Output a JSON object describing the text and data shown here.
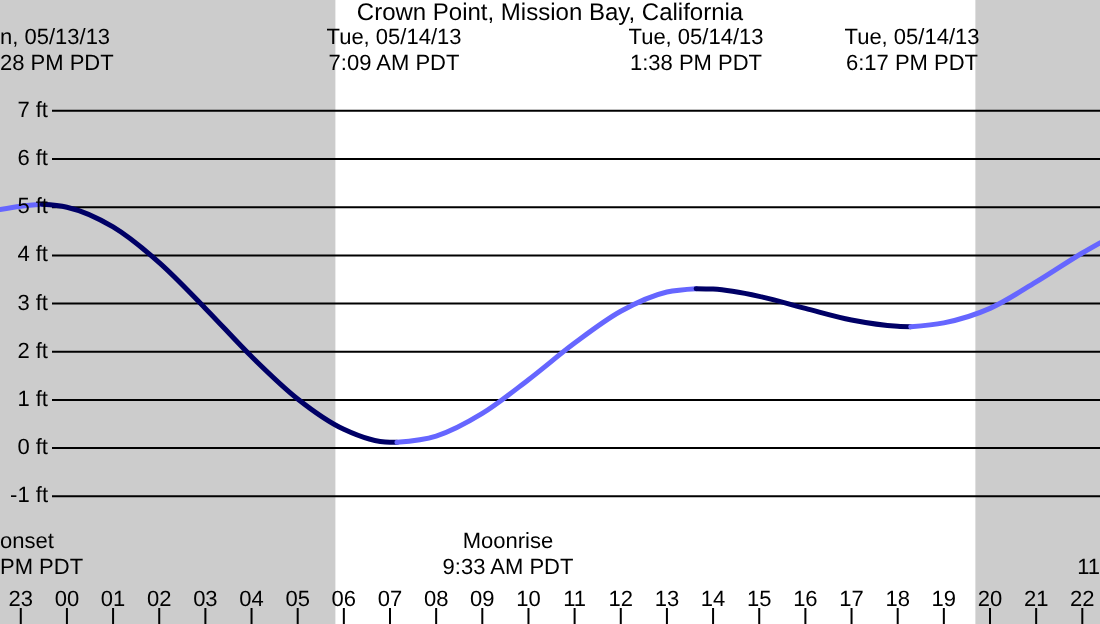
{
  "chart_data": {
    "type": "line",
    "title": "Crown Point, Mission Bay, California",
    "xlim": [
      "--05-13T22:33",
      "--05-14T22:23"
    ],
    "ylim": [
      -3.65,
      9.3
    ],
    "xticks": [
      {
        "value": "--05-13T23:00",
        "label": "23"
      },
      {
        "value": "--05-14T00:00",
        "label": "00"
      },
      {
        "value": "--05-14T01:00",
        "label": "01"
      },
      {
        "value": "--05-14T02:00",
        "label": "02"
      },
      {
        "value": "--05-14T03:00",
        "label": "03"
      },
      {
        "value": "--05-14T04:00",
        "label": "04"
      },
      {
        "value": "--05-14T05:00",
        "label": "05"
      },
      {
        "value": "--05-14T06:00",
        "label": "06"
      },
      {
        "value": "--05-14T07:00",
        "label": "07"
      },
      {
        "value": "--05-14T08:00",
        "label": "08"
      },
      {
        "value": "--05-14T09:00",
        "label": "09"
      },
      {
        "value": "--05-14T10:00",
        "label": "10"
      },
      {
        "value": "--05-14T11:00",
        "label": "11"
      },
      {
        "value": "--05-14T12:00",
        "label": "12"
      },
      {
        "value": "--05-14T13:00",
        "label": "13"
      },
      {
        "value": "--05-14T14:00",
        "label": "14"
      },
      {
        "value": "--05-14T15:00",
        "label": "15"
      },
      {
        "value": "--05-14T16:00",
        "label": "16"
      },
      {
        "value": "--05-14T17:00",
        "label": "17"
      },
      {
        "value": "--05-14T18:00",
        "label": "18"
      },
      {
        "value": "--05-14T19:00",
        "label": "19"
      },
      {
        "value": "--05-14T20:00",
        "label": "20"
      },
      {
        "value": "--05-14T21:00",
        "label": "21"
      },
      {
        "value": "--05-14T22:00",
        "label": "22"
      }
    ],
    "yticks": [
      {
        "value": -1,
        "label": "-1 ft"
      },
      {
        "value": 0,
        "label": "0 ft"
      },
      {
        "value": 1,
        "label": "1 ft"
      },
      {
        "value": 2,
        "label": "2 ft"
      },
      {
        "value": 3,
        "label": "3 ft"
      },
      {
        "value": 4,
        "label": "4 ft"
      },
      {
        "value": 5,
        "label": "5 ft"
      },
      {
        "value": 6,
        "label": "6 ft"
      },
      {
        "value": 7,
        "label": "7 ft"
      }
    ],
    "grid": "y",
    "bands": [
      {
        "axis": "x",
        "from": "--05-13T22:33",
        "to": "--05-14T05:49",
        "color": "#cccccc"
      },
      {
        "axis": "x",
        "from": "--05-14T19:41",
        "to": "--05-14T22:23",
        "color": "#cccccc"
      }
    ],
    "series": [
      {
        "color": "#6666ff",
        "x": [
          "--05-13T22:33",
          "--05-13T23:00",
          "--05-13T23:28"
        ],
        "values": [
          4.95,
          5.02,
          5.06
        ]
      },
      {
        "color": "#000066",
        "x": [
          "--05-13T23:28",
          "--05-14T00:00",
          "--05-14T01:00",
          "--05-14T02:00",
          "--05-14T03:00",
          "--05-14T04:00",
          "--05-14T05:00",
          "--05-14T06:00",
          "--05-14T07:00",
          "--05-14T07:09"
        ],
        "values": [
          5.06,
          5.0,
          4.59,
          3.85,
          2.9,
          1.9,
          1.02,
          0.39,
          0.12,
          0.12
        ]
      },
      {
        "color": "#6666ff",
        "x": [
          "--05-14T07:09",
          "--05-14T08:00",
          "--05-14T09:00",
          "--05-14T10:00",
          "--05-14T11:00",
          "--05-14T12:00",
          "--05-14T13:00",
          "--05-14T13:38"
        ],
        "values": [
          0.12,
          0.25,
          0.72,
          1.42,
          2.18,
          2.84,
          3.24,
          3.31
        ]
      },
      {
        "color": "#000066",
        "x": [
          "--05-14T13:38",
          "--05-14T14:00",
          "--05-14T15:00",
          "--05-14T16:00",
          "--05-14T17:00",
          "--05-14T18:00",
          "--05-14T18:17"
        ],
        "values": [
          3.31,
          3.3,
          3.15,
          2.9,
          2.66,
          2.53,
          2.52
        ]
      },
      {
        "color": "#6666ff",
        "x": [
          "--05-14T18:17",
          "--05-14T19:00",
          "--05-14T20:00",
          "--05-14T21:00",
          "--05-14T22:00",
          "--05-14T22:23"
        ],
        "values": [
          2.52,
          2.6,
          2.9,
          3.45,
          4.05,
          4.26
        ]
      }
    ],
    "annotations": [
      "n, 05/13/13\n28 PM PDT",
      "Tue, 05/14/13\n7:09 AM PDT",
      "Tue, 05/14/13\n1:38 PM PDT",
      "Tue, 05/14/13\n6:17 PM PDT",
      "onset\nPM PDT",
      "Moonrise\n9:33 AM PDT",
      "11"
    ]
  }
}
